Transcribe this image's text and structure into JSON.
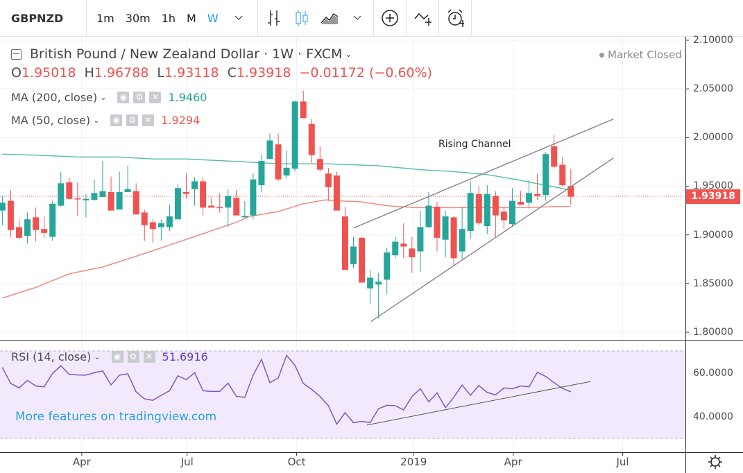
{
  "toolbar": {
    "symbol": "GBPNZD",
    "intervals": [
      "1m",
      "30m",
      "1h",
      "M",
      "W"
    ],
    "active_interval": "W"
  },
  "legend": {
    "title": "British Pound / New Zealand Dollar · 1W · FXCM",
    "market_status": "Market Closed",
    "ohlc": {
      "o_label": "O",
      "o": "1.95018",
      "h_label": "H",
      "h": "1.96788",
      "l_label": "L",
      "l": "1.93118",
      "c_label": "C",
      "c": "1.93918",
      "change": "−0.01172 (−0.60%)"
    },
    "ma200": {
      "label": "MA (200, close)",
      "value": "1.9460",
      "color": "#22a08f"
    },
    "ma50": {
      "label": "MA (50, close)",
      "value": "1.9294",
      "color": "#ef5350"
    },
    "rsi": {
      "label": "RSI (14, close)",
      "value": "51.6916",
      "color": "#5b3cc4"
    }
  },
  "price_axis": {
    "labels": [
      "2.10000",
      "2.05000",
      "2.00000",
      "1.95000",
      "1.90000",
      "1.85000",
      "1.80000"
    ],
    "current": "1.93918"
  },
  "rsi_axis": {
    "labels": [
      "60.0000",
      "40.0000"
    ]
  },
  "time_axis": [
    {
      "label": "Apr",
      "index": 9.5
    },
    {
      "label": "Jul",
      "index": 22.1
    },
    {
      "label": "Oct",
      "index": 35.2
    },
    {
      "label": "2019",
      "index": 49.2
    },
    {
      "label": "Apr",
      "index": 61.1
    },
    {
      "label": "Jul",
      "index": 74.2
    }
  ],
  "annotation": {
    "text": "Rising Channel"
  },
  "watermark": "More features on tradingview.com",
  "colors": {
    "up": "#26a69a",
    "down": "#ef5350",
    "ma200": "#5cbfae",
    "ma50": "#f28880",
    "rsi": "#7e57c2"
  },
  "chart_data": {
    "type": "candlestick",
    "ylim": [
      1.78,
      2.11
    ],
    "candles": [
      [
        1.925,
        1.94,
        1.91,
        1.933
      ],
      [
        1.935,
        1.946,
        1.898,
        1.905
      ],
      [
        1.908,
        1.916,
        1.895,
        1.897
      ],
      [
        1.899,
        1.923,
        1.891,
        1.916
      ],
      [
        1.918,
        1.928,
        1.893,
        1.905
      ],
      [
        1.906,
        1.919,
        1.897,
        1.902
      ],
      [
        1.898,
        1.935,
        1.894,
        1.932
      ],
      [
        1.93,
        1.965,
        1.929,
        1.953
      ],
      [
        1.954,
        1.959,
        1.936,
        1.937
      ],
      [
        1.9375,
        1.954,
        1.919,
        1.9365
      ],
      [
        1.9355,
        1.942,
        1.918,
        1.937
      ],
      [
        1.936,
        1.957,
        1.935,
        1.943
      ],
      [
        1.939,
        1.976,
        1.939,
        1.945
      ],
      [
        1.944,
        1.96,
        1.925,
        1.925
      ],
      [
        1.926,
        1.965,
        1.926,
        1.944
      ],
      [
        1.944,
        1.971,
        1.944,
        1.947
      ],
      [
        1.945,
        1.953,
        1.921,
        1.921
      ],
      [
        1.923,
        1.926,
        1.894,
        1.91
      ],
      [
        1.913,
        1.916,
        1.892,
        1.906
      ],
      [
        1.908,
        1.916,
        1.894,
        1.912
      ],
      [
        1.908,
        1.931,
        1.904,
        1.919
      ],
      [
        1.916,
        1.952,
        1.916,
        1.948
      ],
      [
        1.944,
        1.963,
        1.937,
        1.942
      ],
      [
        1.947,
        1.959,
        1.93,
        1.955
      ],
      [
        1.955,
        1.959,
        1.92,
        1.928
      ],
      [
        1.93,
        1.938,
        1.928,
        1.928
      ],
      [
        1.9285,
        1.943,
        1.923,
        1.928
      ],
      [
        1.928,
        1.947,
        1.908,
        1.94
      ],
      [
        1.938,
        1.946,
        1.92,
        1.92
      ],
      [
        1.918,
        1.935,
        1.918,
        1.9195
      ],
      [
        1.92,
        1.963,
        1.916,
        1.957
      ],
      [
        1.951,
        1.983,
        1.944,
        1.976
      ],
      [
        1.978,
        2.004,
        1.978,
        1.997
      ],
      [
        1.993,
        2.004,
        1.955,
        1.957
      ],
      [
        1.961,
        1.987,
        1.958,
        1.969
      ],
      [
        1.968,
        2.038,
        1.965,
        2.037
      ],
      [
        2.037,
        2.048,
        2.02,
        2.02
      ],
      [
        2.014,
        2.019,
        1.974,
        1.982
      ],
      [
        1.978,
        1.991,
        1.965,
        1.967
      ],
      [
        1.963,
        1.969,
        1.935,
        1.949
      ],
      [
        1.961,
        1.965,
        1.925,
        1.925
      ],
      [
        1.919,
        1.929,
        1.864,
        1.864
      ],
      [
        1.87,
        1.898,
        1.866,
        1.888
      ],
      [
        1.897,
        1.898,
        1.851,
        1.851
      ],
      [
        1.845,
        1.864,
        1.829,
        1.856
      ],
      [
        1.849,
        1.861,
        1.814,
        1.852
      ],
      [
        1.854,
        1.887,
        1.839,
        1.882
      ],
      [
        1.879,
        1.898,
        1.876,
        1.893
      ],
      [
        1.891,
        1.912,
        1.876,
        1.888
      ],
      [
        1.886,
        1.898,
        1.861,
        1.877
      ],
      [
        1.883,
        1.925,
        1.862,
        1.908
      ],
      [
        1.908,
        1.944,
        1.907,
        1.93
      ],
      [
        1.929,
        1.934,
        1.883,
        1.897
      ],
      [
        1.895,
        1.925,
        1.877,
        1.919
      ],
      [
        1.918,
        1.919,
        1.868,
        1.876
      ],
      [
        1.883,
        1.929,
        1.874,
        1.906
      ],
      [
        1.904,
        1.955,
        1.896,
        1.943
      ],
      [
        1.942,
        1.95,
        1.91,
        1.912
      ],
      [
        1.909,
        1.951,
        1.901,
        1.942
      ],
      [
        1.94,
        1.945,
        1.897,
        1.92
      ],
      [
        1.924,
        1.928,
        1.906,
        1.915
      ],
      [
        1.911,
        1.948,
        1.909,
        1.935
      ],
      [
        1.934,
        1.945,
        1.931,
        1.931
      ],
      [
        1.933,
        1.956,
        1.927,
        1.943
      ],
      [
        1.942,
        1.963,
        1.936,
        1.94
      ],
      [
        1.941,
        1.985,
        1.935,
        1.983
      ],
      [
        1.991,
        2.003,
        1.968,
        1.97
      ],
      [
        1.972,
        1.98,
        1.95,
        1.951
      ],
      [
        1.95018,
        1.96788,
        1.93118,
        1.93918
      ]
    ],
    "candle_fields": [
      "open",
      "high",
      "low",
      "close"
    ],
    "ma200": [
      [
        0,
        1.983
      ],
      [
        4,
        1.982
      ],
      [
        9,
        1.98
      ],
      [
        14,
        1.98
      ],
      [
        18,
        1.978
      ],
      [
        22,
        1.978
      ],
      [
        29,
        1.975
      ],
      [
        33,
        1.973
      ],
      [
        39,
        1.973
      ],
      [
        45,
        1.971
      ],
      [
        50,
        1.967
      ],
      [
        54,
        1.965
      ],
      [
        58,
        1.962
      ],
      [
        62,
        1.956
      ],
      [
        65,
        1.951
      ],
      [
        68,
        1.946
      ]
    ],
    "ma50": [
      [
        0,
        1.835
      ],
      [
        4,
        1.846
      ],
      [
        8,
        1.86
      ],
      [
        12,
        1.867
      ],
      [
        16,
        1.878
      ],
      [
        20.5,
        1.891
      ],
      [
        24.6,
        1.903
      ],
      [
        28,
        1.913
      ],
      [
        29.6,
        1.919
      ],
      [
        33,
        1.924
      ],
      [
        36,
        1.932
      ],
      [
        38.7,
        1.936
      ],
      [
        40,
        1.935
      ],
      [
        42.9,
        1.934
      ],
      [
        46,
        1.93
      ],
      [
        49.5,
        1.928
      ],
      [
        53.7,
        1.928
      ],
      [
        57.8,
        1.928
      ],
      [
        62,
        1.928
      ],
      [
        66,
        1.929
      ],
      [
        68,
        1.9294
      ]
    ],
    "channel_upper": [
      [
        42.0,
        1.907
      ],
      [
        73.1,
        2.019
      ]
    ],
    "channel_lower": [
      [
        44.1,
        1.811
      ],
      [
        73.1,
        1.979
      ]
    ],
    "annotation_at": [
      56.5,
      1.993
    ],
    "rsi": [
      62.9,
      55.6,
      53.5,
      57.0,
      54.4,
      54.0,
      60.2,
      63.7,
      59.7,
      59.5,
      59.4,
      60.5,
      61.3,
      54.9,
      59.4,
      60.0,
      51.7,
      48.5,
      47.8,
      50.1,
      52.2,
      59.1,
      57.3,
      60.5,
      52.2,
      51.9,
      51.9,
      55.7,
      49.6,
      49.2,
      59.4,
      66.6,
      55.9,
      58.1,
      68.5,
      63.9,
      55.6,
      52.8,
      49.6,
      45.3,
      36.8,
      42.1,
      37.5,
      38.1,
      37.5,
      43.9,
      45.5,
      45.3,
      43.4,
      49.6,
      53.1,
      47.1,
      51.2,
      44.4,
      49.2,
      54.8,
      50.1,
      54.6,
      51.4,
      50.3,
      53.5,
      53.1,
      54.4,
      54.0,
      60.7,
      58.8,
      55.9,
      53.3,
      51.6916
    ],
    "rsi_bands": [
      70,
      30
    ],
    "rsi_trendline": [
      [
        43.6,
        36.4
      ],
      [
        70.4,
        56.5
      ]
    ]
  }
}
